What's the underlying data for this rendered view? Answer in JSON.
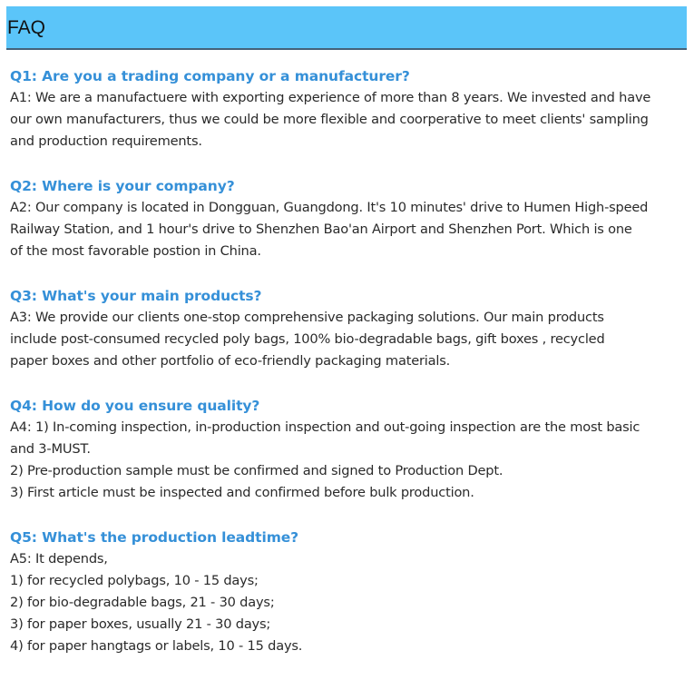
{
  "header": {
    "title": "FAQ",
    "color": "#5bc5f9",
    "question_color": "#3590d8"
  },
  "faqs": [
    {
      "question": "Q1: Are you a trading company or a manufacturer?",
      "answer_lines": [
        "A1: We are a manufactuere with exporting experience of more than 8 years. We invested and have",
        "our own manufacturers, thus we could be more flexible and coorperative to meet clients' sampling",
        "and production requirements."
      ]
    },
    {
      "question": "Q2: Where is your company?",
      "answer_lines": [
        "A2: Our company is located in Dongguan, Guangdong. It's 10 minutes' drive to Humen High-speed",
        "Railway Station, and 1 hour's drive to Shenzhen Bao'an Airport and Shenzhen Port. Which is one",
        "of the most favorable postion in China."
      ]
    },
    {
      "question": "Q3: What's your main products?",
      "answer_lines": [
        "A3: We provide our clients one-stop comprehensive packaging solutions. Our main products",
        "include post-consumed recycled poly bags, 100% bio-degradable bags, gift boxes , recycled",
        "paper boxes and other portfolio of eco-friendly packaging materials."
      ]
    },
    {
      "question": "Q4: How do you ensure quality?",
      "answer_lines": [
        "A4: 1) In-coming inspection, in-production inspection and out-going inspection are the most basic",
        "and 3-MUST.",
        "2) Pre-production sample must be confirmed and signed to Production Dept.",
        "3) First article must be inspected and confirmed before bulk production."
      ]
    },
    {
      "question": "Q5: What's the production leadtime?",
      "answer_lines": [
        "A5: It depends,",
        "1) for recycled polybags, 10 - 15 days;",
        "2) for bio-degradable bags, 21 - 30 days;",
        "3) for paper boxes, usually 21 - 30 days;",
        "4) for paper hangtags or labels, 10 - 15 days."
      ]
    }
  ]
}
